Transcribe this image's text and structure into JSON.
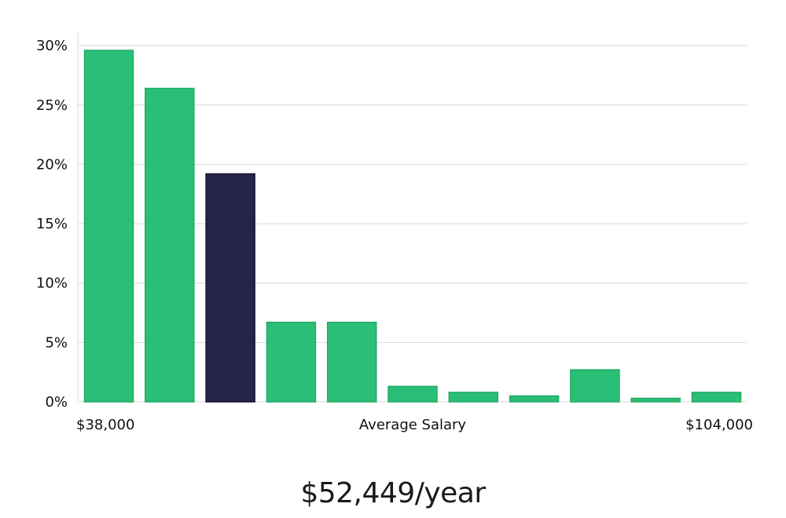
{
  "chart_data": {
    "type": "bar",
    "values": [
      29.6,
      26.4,
      19.2,
      6.7,
      6.7,
      1.3,
      0.8,
      0.5,
      2.7,
      0.3,
      0.8
    ],
    "highlight_index": 2,
    "y_ticks": [
      "0%",
      "5%",
      "10%",
      "15%",
      "20%",
      "25%",
      "30%"
    ],
    "ylim": [
      0,
      31
    ],
    "x_labels": {
      "min": "$38,000",
      "center": "Average Salary",
      "max": "$104,000"
    },
    "grid": true,
    "colors": {
      "bar": "#2abf77",
      "bar_border": "#25a866",
      "highlight": "#27244a",
      "highlight_border": "#111133",
      "grid": "#d9d9d9"
    }
  },
  "summary": {
    "average": "$52,449/year"
  }
}
